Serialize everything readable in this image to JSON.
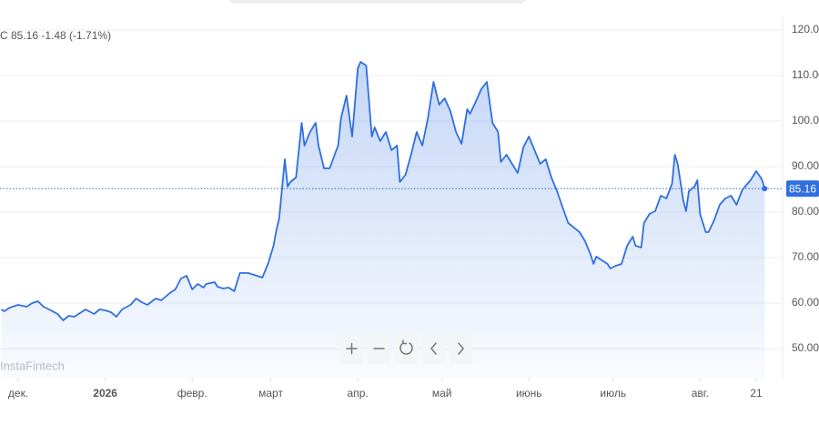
{
  "chart_data": {
    "type": "area",
    "header": "C 85.16  -1.48 (-1.71%)",
    "watermark": "InstaFintech",
    "color": "#2f6fe0",
    "x": [
      -6,
      -5,
      -3,
      0,
      3,
      5,
      7,
      9,
      11,
      14,
      16,
      18,
      20,
      23,
      24,
      27,
      29,
      31,
      33,
      35,
      37,
      40,
      42,
      44,
      46,
      49,
      51,
      54,
      56,
      58,
      60,
      62,
      64,
      66,
      67,
      70,
      71,
      73,
      75,
      77,
      79,
      82,
      84,
      87,
      89,
      91,
      92,
      93,
      95,
      96,
      97,
      99,
      101,
      102,
      104,
      106,
      107,
      109,
      111,
      113,
      114,
      115,
      117,
      118,
      119,
      121,
      122,
      124,
      126,
      127,
      129,
      131,
      133,
      135,
      136,
      138,
      140,
      142,
      144,
      146,
      148,
      150,
      152,
      154,
      156,
      158,
      160,
      161,
      163,
      165,
      167,
      169,
      171,
      172,
      174,
      176,
      178,
      180,
      182,
      184,
      186,
      188,
      190,
      192,
      194,
      196,
      198,
      200,
      202,
      204,
      205,
      206,
      208,
      210,
      211,
      213,
      215,
      217,
      219,
      220,
      222,
      223,
      225,
      227,
      229,
      231,
      233,
      234,
      235,
      237,
      238,
      239,
      241,
      242,
      243,
      245,
      246,
      248,
      250,
      252,
      254,
      256,
      258,
      259,
      261,
      263,
      265,
      266
    ],
    "values": [
      58.6,
      58.2,
      59.0,
      59.6,
      59.2,
      60.0,
      60.4,
      59.2,
      58.6,
      57.6,
      56.2,
      57.2,
      57.0,
      58.2,
      58.6,
      57.6,
      58.6,
      58.4,
      58.0,
      57.0,
      58.6,
      59.6,
      61.0,
      60.2,
      59.6,
      61.0,
      60.6,
      62.2,
      63.0,
      65.4,
      66.0,
      63.0,
      64.2,
      63.4,
      64.2,
      64.6,
      63.6,
      63.2,
      63.4,
      62.6,
      66.6,
      66.6,
      66.2,
      65.6,
      68.6,
      72.6,
      76.0,
      78.6,
      91.6,
      85.6,
      86.6,
      87.6,
      99.6,
      94.6,
      97.6,
      99.6,
      94.6,
      89.6,
      89.6,
      93.0,
      94.6,
      100.6,
      105.6,
      101.0,
      96.6,
      111.6,
      113.0,
      112.2,
      96.6,
      98.6,
      95.6,
      97.6,
      93.6,
      94.6,
      86.6,
      88.2,
      92.6,
      97.6,
      94.6,
      100.6,
      108.6,
      103.6,
      105.0,
      102.2,
      97.6,
      95.0,
      102.6,
      101.6,
      104.2,
      107.0,
      108.6,
      99.6,
      97.6,
      91.0,
      92.6,
      90.6,
      88.6,
      94.2,
      96.6,
      93.6,
      90.6,
      91.6,
      87.6,
      84.6,
      81.0,
      77.6,
      76.6,
      75.6,
      73.6,
      70.6,
      68.6,
      70.2,
      69.4,
      68.6,
      67.6,
      68.2,
      68.6,
      72.6,
      74.6,
      72.6,
      72.2,
      77.6,
      79.6,
      80.2,
      83.6,
      83.0,
      86.2,
      92.6,
      90.6,
      82.6,
      80.2,
      84.6,
      85.6,
      87.0,
      79.6,
      75.6,
      75.6,
      78.2,
      81.6,
      83.0,
      83.6,
      81.6,
      84.8,
      85.6,
      87.0,
      89.0,
      87.2,
      85.16
    ],
    "price_line": {
      "value": 85.16,
      "label": "85.16"
    },
    "xlim": [
      -6.5,
      272.4
    ],
    "xticks": [
      {
        "value": 0,
        "label": "дек."
      },
      {
        "value": 31,
        "label": "2026"
      },
      {
        "value": 62,
        "label": "февр."
      },
      {
        "value": 90,
        "label": "март"
      },
      {
        "value": 121,
        "label": "апр."
      },
      {
        "value": 151,
        "label": "май"
      },
      {
        "value": 182,
        "label": "июнь"
      },
      {
        "value": 212,
        "label": "июль"
      },
      {
        "value": 243,
        "label": "авг."
      },
      {
        "value": 263,
        "label": "21"
      }
    ],
    "ylim": [
      43.6,
      123
    ],
    "yticks": [
      {
        "value": 50,
        "label": "50.00"
      },
      {
        "value": 60,
        "label": "60.00"
      },
      {
        "value": 70,
        "label": "70.00"
      },
      {
        "value": 80,
        "label": "80.00"
      },
      {
        "value": 90,
        "label": "90.00"
      },
      {
        "value": 100,
        "label": "100.00"
      },
      {
        "value": 110,
        "label": "110.00"
      },
      {
        "value": 120,
        "label": "120.00"
      }
    ],
    "grid": true
  }
}
